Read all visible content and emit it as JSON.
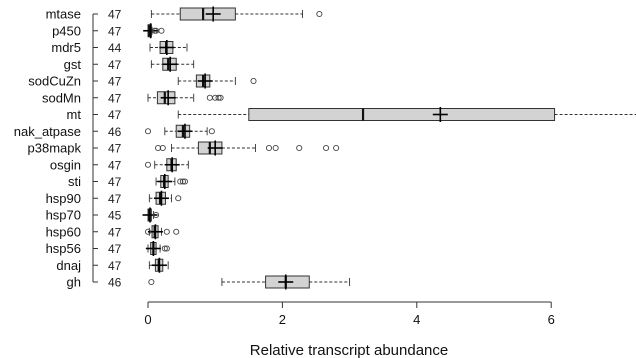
{
  "chart_data": {
    "type": "boxplot",
    "orientation": "horizontal",
    "xlabel": "Relative transcript abundance",
    "xlim": [
      0,
      7.3
    ],
    "xticks": [
      0,
      2,
      4,
      6
    ],
    "xtick_labels": [
      "0",
      "2",
      "4",
      "6"
    ],
    "colors": {
      "box_fill": "#d3d3d3",
      "stroke": "#333333"
    },
    "series": [
      {
        "label": "mtase",
        "n": "47",
        "whisker": [
          0.05,
          2.3
        ],
        "q1": 0.48,
        "median": 0.82,
        "q3": 1.3,
        "mean": 0.97,
        "outliers": [
          2.55
        ]
      },
      {
        "label": "p450",
        "n": "47",
        "whisker": [
          0.0,
          0.06
        ],
        "q1": 0.0,
        "median": 0.02,
        "q3": 0.05,
        "mean": 0.04,
        "outliers": [
          0.1,
          0.12,
          0.2
        ]
      },
      {
        "label": "mdr5",
        "n": "44",
        "whisker": [
          0.03,
          0.58
        ],
        "q1": 0.18,
        "median": 0.27,
        "q3": 0.37,
        "mean": 0.28,
        "outliers": []
      },
      {
        "label": "gst",
        "n": "47",
        "whisker": [
          0.05,
          0.68
        ],
        "q1": 0.22,
        "median": 0.3,
        "q3": 0.42,
        "mean": 0.33,
        "outliers": []
      },
      {
        "label": "sodCuZn",
        "n": "47",
        "whisker": [
          0.45,
          1.3
        ],
        "q1": 0.72,
        "median": 0.82,
        "q3": 0.92,
        "mean": 0.85,
        "outliers": [
          1.57
        ]
      },
      {
        "label": "sodMn",
        "n": "47",
        "whisker": [
          0.0,
          0.68
        ],
        "q1": 0.14,
        "median": 0.25,
        "q3": 0.4,
        "mean": 0.3,
        "outliers": [
          0.92,
          1.0,
          1.05,
          1.08
        ]
      },
      {
        "label": "mt",
        "n": "47",
        "whisker": [
          0.45,
          7.3
        ],
        "q1": 1.5,
        "median": 3.2,
        "q3": 6.05,
        "mean": 4.35,
        "outliers": []
      },
      {
        "label": "nak_atpase",
        "n": "46",
        "whisker": [
          0.25,
          0.88
        ],
        "q1": 0.42,
        "median": 0.52,
        "q3": 0.62,
        "mean": 0.55,
        "outliers": [
          0.0,
          0.95
        ]
      },
      {
        "label": "p38mapk",
        "n": "47",
        "whisker": [
          0.35,
          1.6
        ],
        "q1": 0.75,
        "median": 0.92,
        "q3": 1.1,
        "mean": 1.0,
        "outliers": [
          0.15,
          0.22,
          1.8,
          1.9,
          2.25,
          2.65,
          2.8
        ]
      },
      {
        "label": "osgin",
        "n": "47",
        "whisker": [
          0.1,
          0.6
        ],
        "q1": 0.28,
        "median": 0.35,
        "q3": 0.42,
        "mean": 0.36,
        "outliers": [
          0.0
        ]
      },
      {
        "label": "sti",
        "n": "47",
        "whisker": [
          0.12,
          0.4
        ],
        "q1": 0.19,
        "median": 0.24,
        "q3": 0.3,
        "mean": 0.25,
        "outliers": [
          0.48,
          0.52,
          0.55
        ]
      },
      {
        "label": "hsp90",
        "n": "47",
        "whisker": [
          0.02,
          0.35
        ],
        "q1": 0.12,
        "median": 0.18,
        "q3": 0.26,
        "mean": 0.2,
        "outliers": [
          0.45
        ]
      },
      {
        "label": "hsp70",
        "n": "45",
        "whisker": [
          0.0,
          0.08
        ],
        "q1": 0.0,
        "median": 0.02,
        "q3": 0.05,
        "mean": 0.03,
        "outliers": [
          0.12
        ]
      },
      {
        "label": "hsp60",
        "n": "47",
        "whisker": [
          0.02,
          0.2
        ],
        "q1": 0.06,
        "median": 0.1,
        "q3": 0.15,
        "mean": 0.11,
        "outliers": [
          0.0,
          0.28,
          0.42
        ]
      },
      {
        "label": "hsp56",
        "n": "47",
        "whisker": [
          0.0,
          0.18
        ],
        "q1": 0.04,
        "median": 0.08,
        "q3": 0.12,
        "mean": 0.08,
        "outliers": [
          0.25,
          0.28
        ]
      },
      {
        "label": "dnaj",
        "n": "47",
        "whisker": [
          0.02,
          0.3
        ],
        "q1": 0.11,
        "median": 0.16,
        "q3": 0.22,
        "mean": 0.17,
        "outliers": []
      },
      {
        "label": "gh",
        "n": "46",
        "whisker": [
          1.1,
          3.0
        ],
        "q1": 1.75,
        "median": 2.05,
        "q3": 2.4,
        "mean": 2.05,
        "outliers": [
          0.05
        ]
      }
    ]
  }
}
